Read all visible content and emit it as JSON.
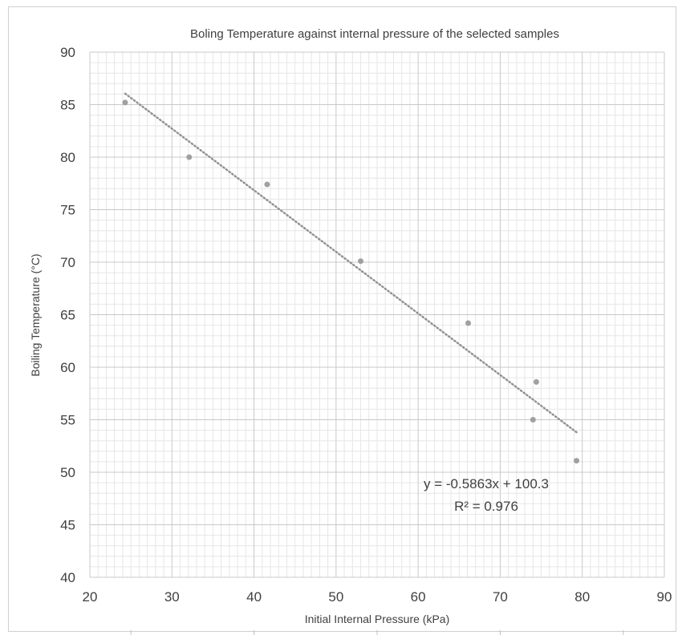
{
  "chart_data": {
    "type": "scatter",
    "title": "Boling Temperature against internal pressure of the selected samples",
    "xlabel": "Initial Internal Pressure (kPa)",
    "ylabel": "Boiling Temperature (°C)",
    "xlim": [
      20,
      90
    ],
    "ylim": [
      40,
      90
    ],
    "x_ticks": [
      20,
      30,
      40,
      50,
      60,
      70,
      80,
      90
    ],
    "y_ticks": [
      40,
      45,
      50,
      55,
      60,
      65,
      70,
      75,
      80,
      85,
      90
    ],
    "grid": true,
    "series": [
      {
        "points": [
          {
            "x": 24.3,
            "y": 85.2
          },
          {
            "x": 32.1,
            "y": 80.0
          },
          {
            "x": 41.6,
            "y": 77.4
          },
          {
            "x": 53.0,
            "y": 70.1
          },
          {
            "x": 66.1,
            "y": 64.2
          },
          {
            "x": 74.4,
            "y": 58.6
          },
          {
            "x": 74.0,
            "y": 55.0
          },
          {
            "x": 79.3,
            "y": 51.1
          }
        ],
        "color": "#a0a0a0"
      }
    ],
    "trendline": {
      "type": "linear",
      "slope": -0.5863,
      "intercept": 100.3,
      "x_range": [
        24.3,
        79.3
      ],
      "style": "dotted",
      "equation_label": "y = -0.5863x + 100.3",
      "r2_label": "R² = 0.976"
    },
    "colors": {
      "major_grid": "#c8c8c8",
      "minor_grid": "#e6e6e6",
      "text": "#404040",
      "trendline": "#909090"
    }
  }
}
